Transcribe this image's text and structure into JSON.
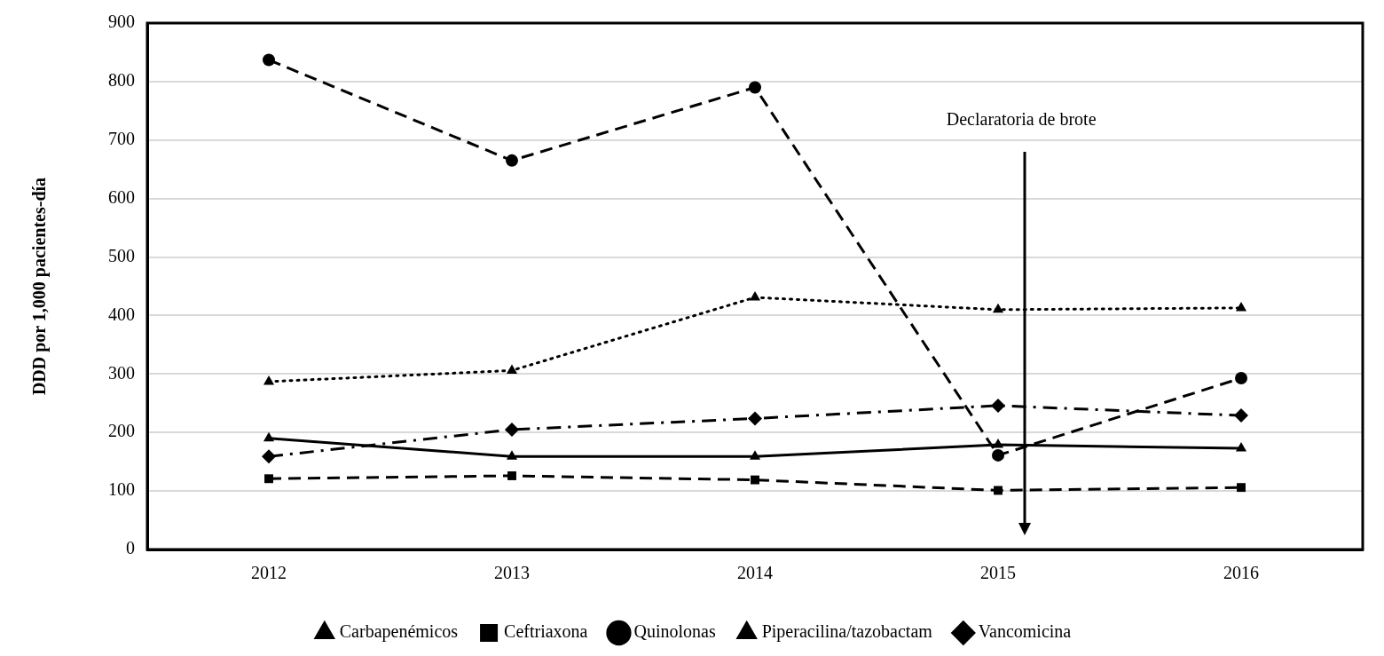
{
  "chart_data": {
    "type": "line",
    "ylabel": "DDD por 1,000 pacientes-día",
    "categories": [
      "2012",
      "2013",
      "2014",
      "2015",
      "2016"
    ],
    "series": [
      {
        "name": "Carbapenémicos",
        "color": "#000000",
        "marker": "triangle",
        "line_style": "dotted",
        "values": [
          287,
          306,
          431,
          410,
          413
        ]
      },
      {
        "name": "Ceftriaxona",
        "color": "#000000",
        "marker": "square",
        "line_style": "dashed",
        "values": [
          121,
          126,
          119,
          101,
          106
        ]
      },
      {
        "name": "Quinolonas",
        "color": "#000000",
        "marker": "circle",
        "line_style": "dashed",
        "values": [
          837,
          665,
          790,
          161,
          293
        ]
      },
      {
        "name": "Piperacilina/tazobactam",
        "color": "#000000",
        "marker": "triangle",
        "line_style": "solid",
        "values": [
          190,
          159,
          159,
          179,
          173
        ]
      },
      {
        "name": "Vancomicina",
        "color": "#000000",
        "marker": "diamond",
        "line_style": "dashdot",
        "values": [
          159,
          205,
          224,
          246,
          229
        ]
      }
    ],
    "ylim": [
      0,
      900
    ],
    "yticks": [
      0,
      100,
      200,
      300,
      400,
      500,
      600,
      700,
      800,
      900
    ],
    "grid": "y",
    "legend": "bottom",
    "annotations": [
      "Declaratoria de brote"
    ]
  }
}
